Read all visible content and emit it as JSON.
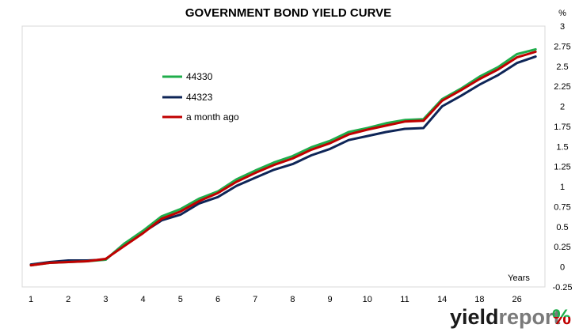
{
  "chart_data": {
    "type": "line",
    "title": "GOVERNMENT BOND YIELD CURVE",
    "ylabel": "%",
    "xlabel": "Years",
    "ylim": [
      -0.25,
      3
    ],
    "y_ticks": [
      -0.25,
      0,
      0.25,
      0.5,
      0.75,
      1,
      1.25,
      1.5,
      1.75,
      2,
      2.25,
      2.5,
      2.75,
      3
    ],
    "y_tick_labels": [
      "-0.25",
      "0",
      "0.25",
      "0.5",
      "0.75",
      "1",
      "1.25",
      "1.5",
      "1.75",
      "2",
      "2.25",
      "2.5",
      "2.75",
      "3"
    ],
    "x_tick_labels": [
      "1",
      "2",
      "3",
      "4",
      "5",
      "6",
      "7",
      "8",
      "9",
      "10",
      "11",
      "14",
      "18",
      "26"
    ],
    "grid": false,
    "legend_position": "upper-left",
    "series": [
      {
        "name": "44330",
        "color": "#1fad4b",
        "values": [
          0.02,
          0.05,
          0.06,
          0.07,
          0.09,
          0.29,
          0.45,
          0.63,
          0.72,
          0.85,
          0.94,
          1.09,
          1.2,
          1.3,
          1.38,
          1.49,
          1.57,
          1.68,
          1.73,
          1.79,
          1.83,
          1.84,
          2.09,
          2.22,
          2.37,
          2.49,
          2.65,
          2.71
        ]
      },
      {
        "name": "44323",
        "color": "#0e2557",
        "values": [
          0.03,
          0.06,
          0.08,
          0.08,
          0.09,
          0.29,
          0.43,
          0.58,
          0.65,
          0.79,
          0.87,
          1.01,
          1.11,
          1.21,
          1.28,
          1.39,
          1.47,
          1.58,
          1.63,
          1.68,
          1.72,
          1.73,
          2.0,
          2.13,
          2.27,
          2.39,
          2.54,
          2.62
        ]
      },
      {
        "name": "a month ago",
        "color": "#c00000",
        "values": [
          0.02,
          0.05,
          0.06,
          0.07,
          0.1,
          0.26,
          0.42,
          0.6,
          0.69,
          0.82,
          0.92,
          1.06,
          1.17,
          1.27,
          1.35,
          1.46,
          1.54,
          1.65,
          1.71,
          1.76,
          1.81,
          1.82,
          2.07,
          2.2,
          2.34,
          2.46,
          2.61,
          2.68
        ]
      }
    ]
  },
  "brand": {
    "part1": "yield",
    "part2": "report",
    "part3": "%",
    "color_pct_top": "#1fad4b",
    "color_pct_bottom": "#c00000"
  }
}
